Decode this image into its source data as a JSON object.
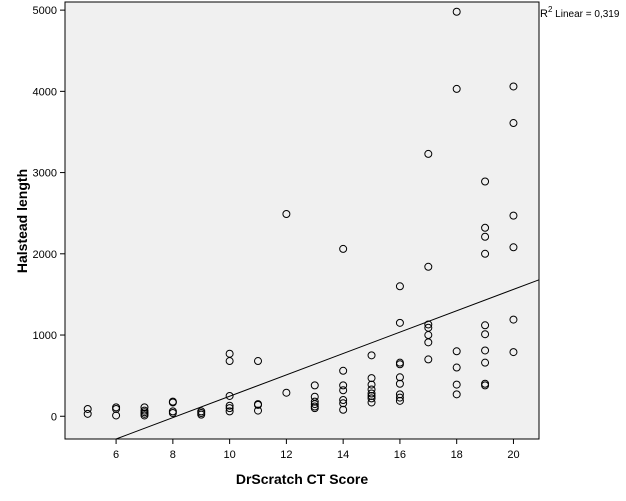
{
  "chart_data": {
    "type": "scatter",
    "xlabel": "DrScratch CT Score",
    "ylabel": "Halstead length",
    "xlim": [
      4.2,
      20.9
    ],
    "ylim": [
      -280,
      5100
    ],
    "x_ticks": [
      6,
      8,
      10,
      12,
      14,
      16,
      18,
      20
    ],
    "y_ticks": [
      0,
      1000,
      2000,
      3000,
      4000,
      5000
    ],
    "grid": false,
    "marker": "open-circle",
    "colors": {
      "plot_background": "#f0f0f0",
      "marker": "#000000",
      "fit_line": "#000000",
      "frame": "#000000"
    },
    "annotation": {
      "r2_prefix": "R",
      "r2_sup": "2",
      "r2_text": " Linear = 0,319"
    },
    "fit_line": {
      "x": [
        6,
        20.9
      ],
      "y": [
        -280,
        1680
      ]
    },
    "points": [
      {
        "x": 5,
        "y": 90
      },
      {
        "x": 5,
        "y": 30
      },
      {
        "x": 6,
        "y": 110
      },
      {
        "x": 6,
        "y": 90
      },
      {
        "x": 6,
        "y": 10
      },
      {
        "x": 7,
        "y": 110
      },
      {
        "x": 7,
        "y": 70
      },
      {
        "x": 7,
        "y": 50
      },
      {
        "x": 7,
        "y": 30
      },
      {
        "x": 7,
        "y": 10
      },
      {
        "x": 8,
        "y": 180
      },
      {
        "x": 8,
        "y": 170
      },
      {
        "x": 8,
        "y": 60
      },
      {
        "x": 8,
        "y": 40
      },
      {
        "x": 9,
        "y": 60
      },
      {
        "x": 9,
        "y": 40
      },
      {
        "x": 9,
        "y": 20
      },
      {
        "x": 10,
        "y": 770
      },
      {
        "x": 10,
        "y": 680
      },
      {
        "x": 10,
        "y": 250
      },
      {
        "x": 10,
        "y": 130
      },
      {
        "x": 10,
        "y": 100
      },
      {
        "x": 10,
        "y": 60
      },
      {
        "x": 11,
        "y": 680
      },
      {
        "x": 11,
        "y": 150
      },
      {
        "x": 11,
        "y": 140
      },
      {
        "x": 11,
        "y": 70
      },
      {
        "x": 12,
        "y": 2490
      },
      {
        "x": 12,
        "y": 290
      },
      {
        "x": 13,
        "y": 380
      },
      {
        "x": 13,
        "y": 240
      },
      {
        "x": 13,
        "y": 180
      },
      {
        "x": 13,
        "y": 150
      },
      {
        "x": 13,
        "y": 120
      },
      {
        "x": 13,
        "y": 100
      },
      {
        "x": 14,
        "y": 2060
      },
      {
        "x": 14,
        "y": 560
      },
      {
        "x": 14,
        "y": 380
      },
      {
        "x": 14,
        "y": 320
      },
      {
        "x": 14,
        "y": 200
      },
      {
        "x": 14,
        "y": 160
      },
      {
        "x": 14,
        "y": 80
      },
      {
        "x": 15,
        "y": 750
      },
      {
        "x": 15,
        "y": 470
      },
      {
        "x": 15,
        "y": 390
      },
      {
        "x": 15,
        "y": 330
      },
      {
        "x": 15,
        "y": 280
      },
      {
        "x": 15,
        "y": 250
      },
      {
        "x": 15,
        "y": 220
      },
      {
        "x": 15,
        "y": 170
      },
      {
        "x": 16,
        "y": 1600
      },
      {
        "x": 16,
        "y": 1150
      },
      {
        "x": 16,
        "y": 660
      },
      {
        "x": 16,
        "y": 640
      },
      {
        "x": 16,
        "y": 480
      },
      {
        "x": 16,
        "y": 400
      },
      {
        "x": 16,
        "y": 270
      },
      {
        "x": 16,
        "y": 230
      },
      {
        "x": 16,
        "y": 190
      },
      {
        "x": 17,
        "y": 3230
      },
      {
        "x": 17,
        "y": 1840
      },
      {
        "x": 17,
        "y": 1130
      },
      {
        "x": 17,
        "y": 1090
      },
      {
        "x": 17,
        "y": 1000
      },
      {
        "x": 17,
        "y": 910
      },
      {
        "x": 17,
        "y": 700
      },
      {
        "x": 18,
        "y": 4980
      },
      {
        "x": 18,
        "y": 4030
      },
      {
        "x": 18,
        "y": 800
      },
      {
        "x": 18,
        "y": 600
      },
      {
        "x": 18,
        "y": 390
      },
      {
        "x": 18,
        "y": 270
      },
      {
        "x": 19,
        "y": 2890
      },
      {
        "x": 19,
        "y": 2320
      },
      {
        "x": 19,
        "y": 2210
      },
      {
        "x": 19,
        "y": 2000
      },
      {
        "x": 19,
        "y": 1120
      },
      {
        "x": 19,
        "y": 1010
      },
      {
        "x": 19,
        "y": 810
      },
      {
        "x": 19,
        "y": 660
      },
      {
        "x": 19,
        "y": 400
      },
      {
        "x": 19,
        "y": 380
      },
      {
        "x": 20,
        "y": 4060
      },
      {
        "x": 20,
        "y": 3610
      },
      {
        "x": 20,
        "y": 2470
      },
      {
        "x": 20,
        "y": 2080
      },
      {
        "x": 20,
        "y": 1190
      },
      {
        "x": 20,
        "y": 790
      }
    ]
  }
}
